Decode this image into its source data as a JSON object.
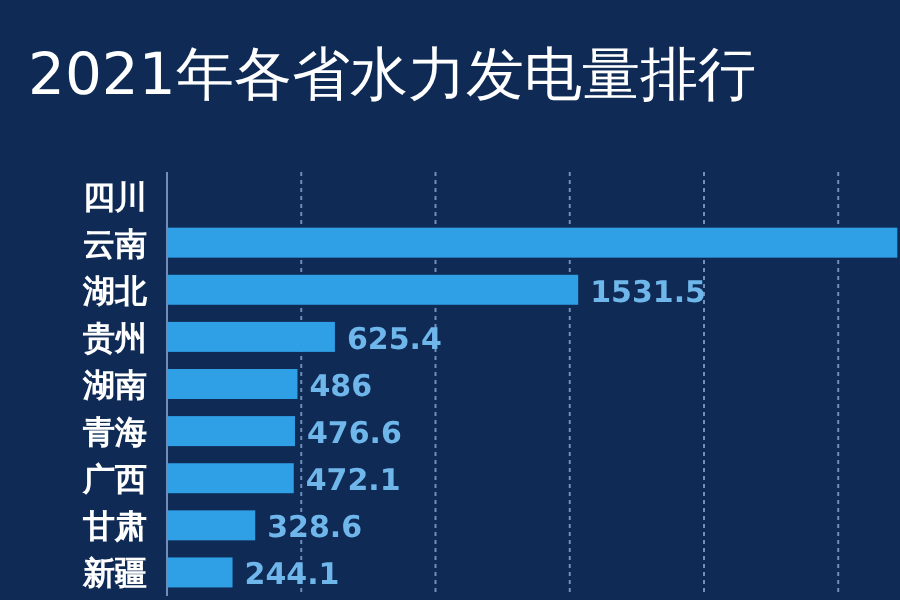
{
  "chart_data": {
    "type": "bar",
    "orientation": "horizontal",
    "title": "2021年各省水力发电量排行",
    "categories": [
      "四川",
      "云南",
      "湖北",
      "贵州",
      "湖南",
      "青海",
      "广西",
      "甘肃",
      "新疆"
    ],
    "values": [
      null,
      2720,
      1531.5,
      625.4,
      486,
      476.6,
      472.1,
      328.6,
      244.1
    ],
    "value_labels": [
      null,
      null,
      "1531.5",
      "625.4",
      "486",
      "476.6",
      "472.1",
      "328.6",
      "244.1"
    ],
    "color": "#2f9fe6",
    "xlim": [
      0,
      2730
    ],
    "xticks": [
      {
        "value": 500,
        "label": null
      },
      {
        "value": 1000,
        "label": null
      },
      {
        "value": 1500,
        "label": null
      },
      {
        "value": 2000,
        "label": null
      },
      {
        "value": 2500,
        "label": null
      }
    ],
    "grid": "x"
  }
}
